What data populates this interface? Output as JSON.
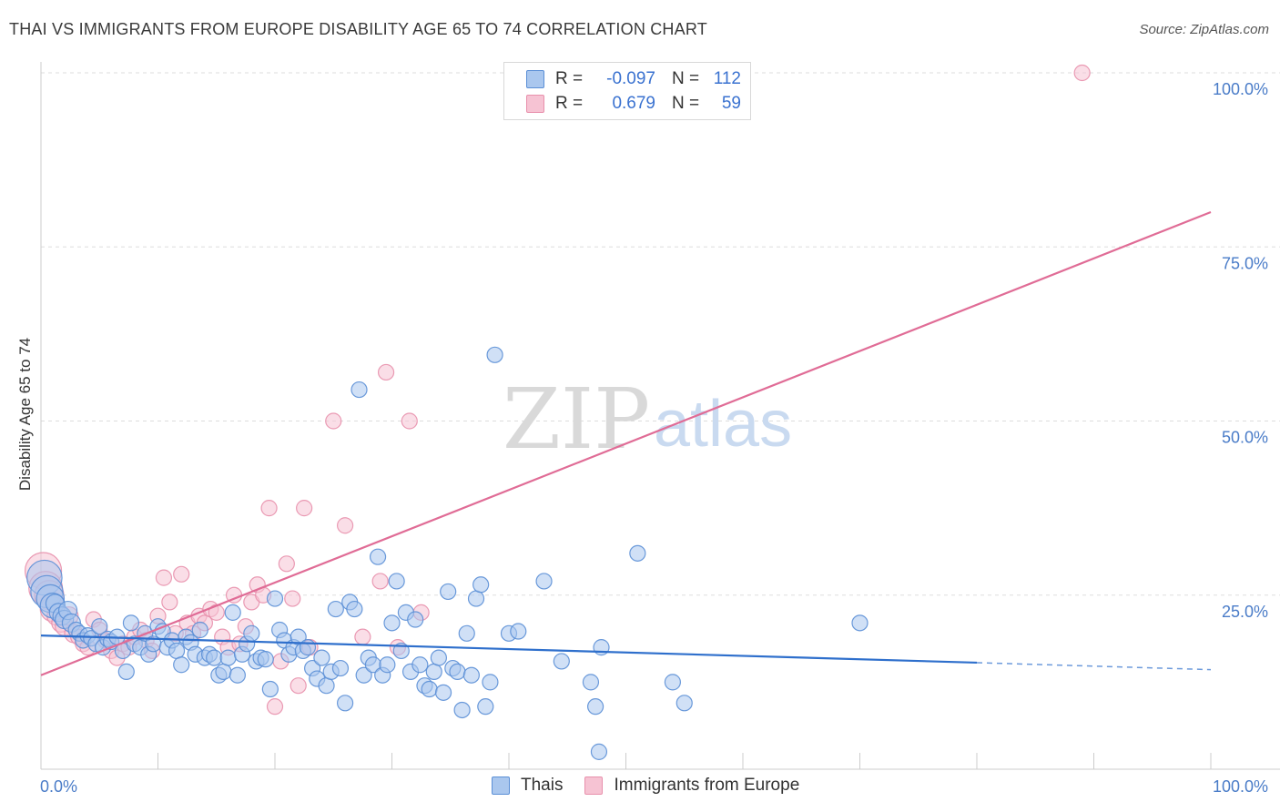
{
  "header": {
    "title": "THAI VS IMMIGRANTS FROM EUROPE DISABILITY AGE 65 TO 74 CORRELATION CHART",
    "source": "Source: ZipAtlas.com"
  },
  "watermark": {
    "zip": "ZIP",
    "atlas": "atlas"
  },
  "legend": {
    "rows": [
      {
        "r_label": "R =",
        "r_value": "-0.097",
        "n_label": "N =",
        "n_value": "112"
      },
      {
        "r_label": "R =",
        "r_value": "0.679",
        "n_label": "N =",
        "n_value": "59"
      }
    ]
  },
  "bottom_legend": [
    {
      "label": "Thais"
    },
    {
      "label": "Immigrants from Europe"
    }
  ],
  "colors": {
    "blue_fill": "#aac7ee",
    "blue_stroke": "#5b8fd6",
    "blue_line": "#2e6fcc",
    "pink_fill": "#f6c3d3",
    "pink_stroke": "#e890ac",
    "pink_line": "#e06c96",
    "tick_text": "#4a7cc8",
    "grid": "#dddddd"
  },
  "chart_data": {
    "type": "scatter",
    "title": "THAI VS IMMIGRANTS FROM EUROPE DISABILITY AGE 65 TO 74 CORRELATION CHART",
    "xlabel": "",
    "ylabel": "Disability Age 65 to 74",
    "xlim": [
      0,
      100
    ],
    "ylim": [
      0,
      100
    ],
    "x_tick_labels": [
      "0.0%",
      "100.0%"
    ],
    "y_ticks": [
      25,
      50,
      75,
      100
    ],
    "y_tick_labels": [
      "25.0%",
      "50.0%",
      "75.0%",
      "100.0%"
    ],
    "grid": true,
    "legend_position": "top-center",
    "series": [
      {
        "name": "Thais",
        "color": "blue",
        "r": -0.097,
        "n": 112,
        "trend": {
          "x": [
            0,
            80
          ],
          "y": [
            19.2,
            15.3
          ],
          "dashed_to": [
            100,
            14.3
          ]
        },
        "points": [
          [
            0.3,
            27.5
          ],
          [
            0.5,
            25.5
          ],
          [
            0.8,
            24.5
          ],
          [
            1.0,
            23.5
          ],
          [
            1.2,
            23.8
          ],
          [
            1.5,
            22.5
          ],
          [
            1.8,
            22.0
          ],
          [
            2.0,
            21.5
          ],
          [
            2.3,
            22.8
          ],
          [
            2.6,
            21.0
          ],
          [
            3.0,
            20.0
          ],
          [
            3.3,
            19.5
          ],
          [
            3.6,
            18.5
          ],
          [
            4.0,
            19.2
          ],
          [
            4.3,
            18.8
          ],
          [
            4.7,
            18.0
          ],
          [
            5.0,
            20.5
          ],
          [
            5.3,
            17.5
          ],
          [
            5.7,
            18.7
          ],
          [
            6.0,
            18.3
          ],
          [
            6.5,
            19.0
          ],
          [
            7.0,
            17.0
          ],
          [
            7.3,
            14.0
          ],
          [
            7.7,
            21.0
          ],
          [
            8.0,
            18.0
          ],
          [
            8.5,
            17.5
          ],
          [
            8.9,
            19.5
          ],
          [
            9.2,
            16.5
          ],
          [
            9.6,
            18.0
          ],
          [
            10.0,
            20.5
          ],
          [
            10.4,
            19.8
          ],
          [
            10.8,
            17.5
          ],
          [
            11.2,
            18.5
          ],
          [
            11.6,
            17.0
          ],
          [
            12.0,
            15.0
          ],
          [
            12.4,
            19.0
          ],
          [
            12.8,
            18.2
          ],
          [
            13.2,
            16.5
          ],
          [
            13.6,
            20.0
          ],
          [
            14.0,
            16.0
          ],
          [
            14.4,
            16.5
          ],
          [
            14.8,
            16.0
          ],
          [
            15.2,
            13.5
          ],
          [
            15.6,
            14.0
          ],
          [
            16.0,
            16.0
          ],
          [
            16.4,
            22.5
          ],
          [
            16.8,
            13.5
          ],
          [
            17.2,
            16.5
          ],
          [
            17.6,
            18.0
          ],
          [
            18.0,
            19.5
          ],
          [
            18.4,
            15.5
          ],
          [
            18.8,
            16.0
          ],
          [
            19.2,
            15.8
          ],
          [
            19.6,
            11.5
          ],
          [
            20.0,
            24.5
          ],
          [
            20.4,
            20.0
          ],
          [
            20.8,
            18.5
          ],
          [
            21.2,
            16.5
          ],
          [
            21.6,
            17.5
          ],
          [
            22.0,
            19.0
          ],
          [
            22.4,
            17.0
          ],
          [
            22.8,
            17.5
          ],
          [
            23.2,
            14.5
          ],
          [
            23.6,
            13.0
          ],
          [
            24.0,
            16.0
          ],
          [
            24.4,
            12.0
          ],
          [
            24.8,
            14.0
          ],
          [
            25.2,
            23.0
          ],
          [
            25.6,
            14.5
          ],
          [
            26.0,
            9.5
          ],
          [
            26.4,
            24.0
          ],
          [
            26.8,
            23.0
          ],
          [
            27.2,
            54.5
          ],
          [
            27.6,
            13.5
          ],
          [
            28.0,
            16.0
          ],
          [
            28.4,
            15.0
          ],
          [
            28.8,
            30.5
          ],
          [
            29.2,
            13.5
          ],
          [
            29.6,
            15.0
          ],
          [
            30.0,
            21.0
          ],
          [
            30.4,
            27.0
          ],
          [
            30.8,
            17.0
          ],
          [
            31.2,
            22.5
          ],
          [
            31.6,
            14.0
          ],
          [
            32.0,
            21.5
          ],
          [
            32.4,
            15.0
          ],
          [
            32.8,
            12.0
          ],
          [
            33.2,
            11.5
          ],
          [
            33.6,
            14.0
          ],
          [
            34.0,
            16.0
          ],
          [
            34.4,
            11.0
          ],
          [
            34.8,
            25.5
          ],
          [
            35.2,
            14.5
          ],
          [
            35.6,
            14.0
          ],
          [
            36.0,
            8.5
          ],
          [
            36.4,
            19.5
          ],
          [
            36.8,
            13.5
          ],
          [
            37.2,
            24.5
          ],
          [
            37.6,
            26.5
          ],
          [
            38.0,
            9.0
          ],
          [
            38.4,
            12.5
          ],
          [
            38.8,
            59.5
          ],
          [
            40.0,
            19.5
          ],
          [
            40.8,
            19.8
          ],
          [
            43.0,
            27.0
          ],
          [
            44.5,
            15.5
          ],
          [
            47.0,
            12.5
          ],
          [
            47.4,
            9.0
          ],
          [
            47.7,
            2.5
          ],
          [
            47.9,
            17.5
          ],
          [
            51.0,
            31.0
          ],
          [
            54.0,
            12.5
          ],
          [
            55.0,
            9.5
          ],
          [
            70.0,
            21.0
          ]
        ]
      },
      {
        "name": "Immigrants from Europe",
        "color": "pink",
        "r": 0.679,
        "n": 59,
        "trend": {
          "x": [
            0,
            100
          ],
          "y": [
            13.5,
            80.0
          ]
        },
        "points": [
          [
            0.2,
            28.5
          ],
          [
            0.4,
            26.0
          ],
          [
            0.7,
            25.0
          ],
          [
            1.0,
            23.0
          ],
          [
            1.3,
            22.0
          ],
          [
            1.7,
            21.0
          ],
          [
            2.0,
            20.5
          ],
          [
            2.4,
            22.0
          ],
          [
            2.8,
            19.5
          ],
          [
            3.2,
            19.0
          ],
          [
            3.6,
            18.0
          ],
          [
            4.0,
            17.5
          ],
          [
            4.5,
            21.5
          ],
          [
            5.0,
            20.0
          ],
          [
            5.5,
            18.5
          ],
          [
            6.0,
            17.0
          ],
          [
            6.5,
            16.0
          ],
          [
            7.0,
            18.0
          ],
          [
            7.5,
            17.5
          ],
          [
            8.0,
            19.0
          ],
          [
            8.5,
            20.0
          ],
          [
            9.0,
            18.5
          ],
          [
            9.5,
            17.0
          ],
          [
            10.0,
            22.0
          ],
          [
            10.5,
            27.5
          ],
          [
            11.0,
            24.0
          ],
          [
            11.5,
            19.5
          ],
          [
            12.0,
            28.0
          ],
          [
            12.5,
            21.0
          ],
          [
            13.0,
            19.5
          ],
          [
            13.5,
            22.0
          ],
          [
            14.0,
            21.0
          ],
          [
            14.5,
            23.0
          ],
          [
            15.0,
            22.5
          ],
          [
            15.5,
            19.0
          ],
          [
            16.0,
            17.5
          ],
          [
            16.5,
            25.0
          ],
          [
            17.0,
            18.0
          ],
          [
            17.5,
            20.5
          ],
          [
            18.0,
            24.0
          ],
          [
            18.5,
            26.5
          ],
          [
            19.0,
            25.0
          ],
          [
            19.5,
            37.5
          ],
          [
            20.0,
            9.0
          ],
          [
            20.5,
            15.5
          ],
          [
            21.0,
            29.5
          ],
          [
            21.5,
            24.5
          ],
          [
            22.0,
            12.0
          ],
          [
            22.5,
            37.5
          ],
          [
            23.0,
            17.5
          ],
          [
            25.0,
            50.0
          ],
          [
            26.0,
            35.0
          ],
          [
            27.5,
            19.0
          ],
          [
            29.0,
            27.0
          ],
          [
            29.5,
            57.0
          ],
          [
            30.5,
            17.5
          ],
          [
            31.5,
            50.0
          ],
          [
            32.5,
            22.5
          ],
          [
            89.0,
            100.0
          ]
        ]
      }
    ]
  }
}
